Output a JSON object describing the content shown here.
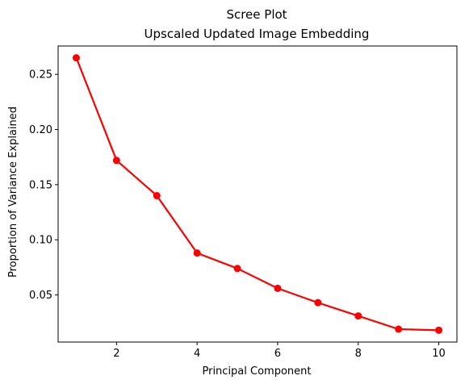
{
  "chart_data": {
    "type": "line",
    "title": "Scree Plot",
    "subtitle": "Upscaled Updated Image Embedding",
    "xlabel": "Principal Component",
    "ylabel": "Proportion of Variance Explained",
    "x": [
      1,
      2,
      3,
      4,
      5,
      6,
      7,
      8,
      9,
      10
    ],
    "series": [
      {
        "values": [
          0.265,
          0.172,
          0.14,
          0.088,
          0.074,
          0.056,
          0.043,
          0.031,
          0.019,
          0.018
        ],
        "color": "#ff0000"
      }
    ],
    "xlim": [
      0.55,
      10.45
    ],
    "ylim": [
      0.0073,
      0.2757
    ],
    "xticks": [
      2,
      4,
      6,
      8,
      10
    ],
    "yticks": [
      0.05,
      0.1,
      0.15,
      0.2,
      0.25
    ],
    "xtick_labels": [
      "2",
      "4",
      "6",
      "8",
      "10"
    ],
    "ytick_labels": [
      "0.05",
      "0.10",
      "0.15",
      "0.20",
      "0.25"
    ],
    "grid": false,
    "marker": "circle"
  }
}
